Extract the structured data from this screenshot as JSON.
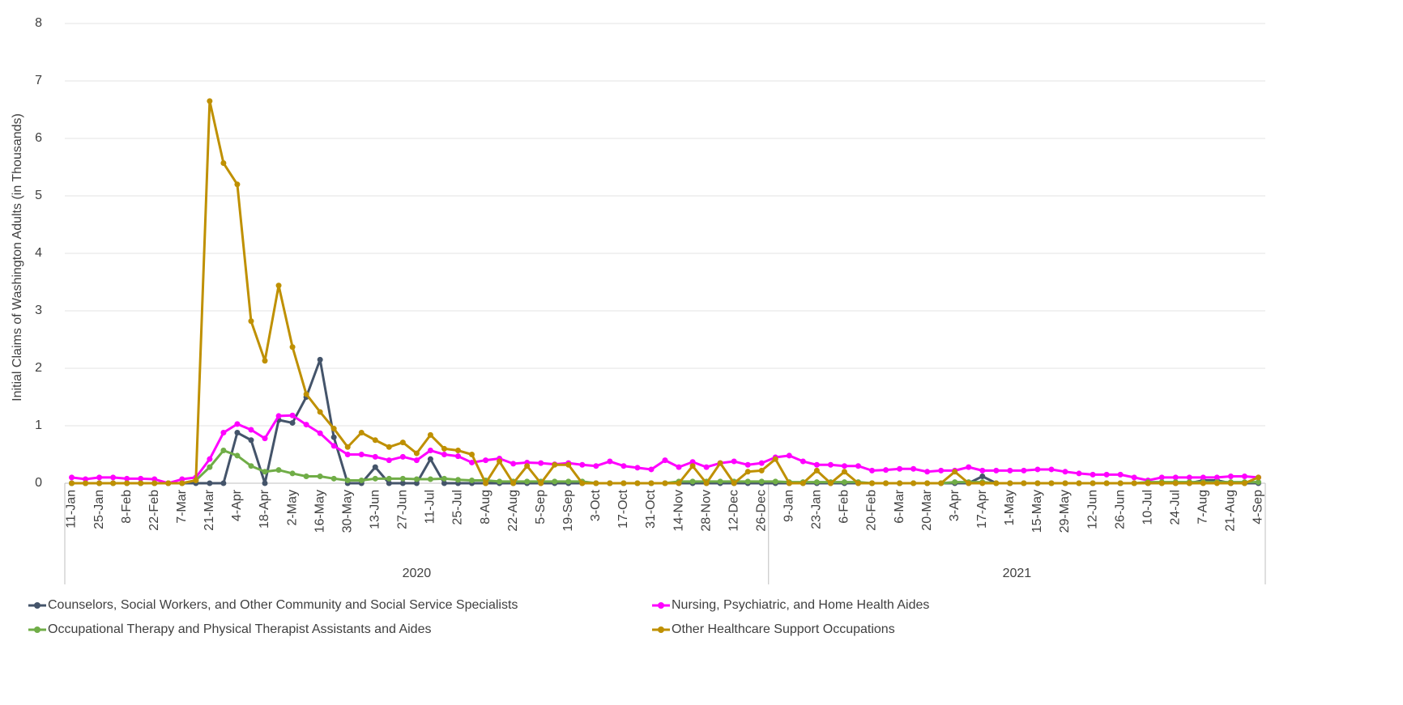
{
  "chart_data": {
    "type": "line",
    "y_label": "Initial Claims of Washington Adults (in Thousands)",
    "categories": [
      "11-Jan",
      null,
      "25-Jan",
      null,
      "8-Feb",
      null,
      "22-Feb",
      null,
      "7-Mar",
      null,
      "21-Mar",
      null,
      "4-Apr",
      null,
      "18-Apr",
      null,
      "2-May",
      null,
      "16-May",
      null,
      "30-May",
      null,
      "13-Jun",
      null,
      "27-Jun",
      null,
      "11-Jul",
      null,
      "25-Jul",
      null,
      "8-Aug",
      null,
      "22-Aug",
      null,
      "5-Sep",
      null,
      "19-Sep",
      null,
      "3-Oct",
      null,
      "17-Oct",
      null,
      "31-Oct",
      null,
      "14-Nov",
      null,
      "28-Nov",
      null,
      "12-Dec",
      null,
      "26-Dec",
      null,
      "9-Jan",
      null,
      "23-Jan",
      null,
      "6-Feb",
      null,
      "20-Feb",
      null,
      "6-Mar",
      null,
      "20-Mar",
      null,
      "3-Apr",
      null,
      "17-Apr",
      null,
      "1-May",
      null,
      "15-May",
      null,
      "29-May",
      null,
      "12-Jun",
      null,
      "26-Jun",
      null,
      "10-Jul",
      null,
      "24-Jul",
      null,
      "7-Aug",
      null,
      "21-Aug",
      null,
      "4-Sep"
    ],
    "x_groups": [
      {
        "label": "2020",
        "span": 51
      },
      {
        "label": "2021",
        "span": 36
      }
    ],
    "ylim": [
      0,
      8
    ],
    "yticks": [
      0,
      1,
      2,
      3,
      4,
      5,
      6,
      7,
      8
    ],
    "grid": true,
    "series": [
      {
        "name": "Counselors, Social Workers, and Other Community and Social Service Specialists",
        "color": "#44546a",
        "values": [
          0,
          0,
          0,
          0,
          0,
          0,
          0,
          0,
          0,
          0,
          0,
          0,
          0.88,
          0.75,
          0,
          1.1,
          1.05,
          1.5,
          2.15,
          0.8,
          0,
          0,
          0.28,
          0,
          0,
          0,
          0.42,
          0,
          0,
          0,
          0,
          0,
          0,
          0,
          0,
          0,
          0,
          0,
          0,
          0,
          0,
          0,
          0,
          0,
          0,
          0,
          0,
          0,
          0,
          0,
          0,
          0,
          0,
          0,
          0,
          0,
          0,
          0,
          0,
          0,
          0,
          0,
          0,
          0,
          0,
          0,
          0.12,
          0,
          0,
          0,
          0,
          0,
          0,
          0,
          0,
          0,
          0,
          0,
          0,
          0,
          0,
          0,
          0.05,
          0.05,
          0,
          0,
          0
        ]
      },
      {
        "name": "Nursing, Psychiatric, and Home Health Aides",
        "color": "#ff00ff",
        "values": [
          0.1,
          0.07,
          0.1,
          0.1,
          0.08,
          0.08,
          0.07,
          0,
          0.07,
          0.1,
          0.42,
          0.88,
          1.03,
          0.93,
          0.78,
          1.17,
          1.18,
          1.02,
          0.87,
          0.65,
          0.5,
          0.5,
          0.46,
          0.4,
          0.46,
          0.4,
          0.57,
          0.5,
          0.47,
          0.36,
          0.4,
          0.43,
          0.34,
          0.36,
          0.35,
          0.33,
          0.35,
          0.32,
          0.3,
          0.38,
          0.3,
          0.27,
          0.24,
          0.4,
          0.28,
          0.37,
          0.28,
          0.35,
          0.38,
          0.32,
          0.35,
          0.45,
          0.48,
          0.38,
          0.32,
          0.32,
          0.3,
          0.3,
          0.22,
          0.23,
          0.25,
          0.25,
          0.2,
          0.22,
          0.22,
          0.28,
          0.22,
          0.22,
          0.22,
          0.22,
          0.24,
          0.24,
          0.2,
          0.17,
          0.15,
          0.15,
          0.15,
          0.1,
          0.05,
          0.1,
          0.1,
          0.1,
          0.1,
          0.1,
          0.12,
          0.12,
          0.1
        ]
      },
      {
        "name": "Occupational Therapy and Physical Therapist Assistants and Aides",
        "color": "#70ad47",
        "values": [
          0,
          0,
          0,
          0,
          0,
          0,
          0,
          0,
          0,
          0.05,
          0.28,
          0.57,
          0.48,
          0.3,
          0.2,
          0.23,
          0.17,
          0.12,
          0.12,
          0.08,
          0.05,
          0.05,
          0.08,
          0.08,
          0.08,
          0.07,
          0.07,
          0.08,
          0.06,
          0.05,
          0.05,
          0.03,
          0.03,
          0.03,
          0.03,
          0.03,
          0.03,
          0.03,
          0,
          0,
          0,
          0,
          0,
          0,
          0.03,
          0.03,
          0.03,
          0.03,
          0.03,
          0.03,
          0.03,
          0.03,
          0.02,
          0.02,
          0.02,
          0.02,
          0.02,
          0.02,
          0,
          0,
          0,
          0,
          0,
          0,
          0.02,
          0.02,
          0.02,
          0,
          0,
          0,
          0,
          0,
          0,
          0,
          0,
          0,
          0,
          0,
          0.02,
          0.02,
          0.02,
          0.02,
          0.02,
          0.02,
          0.02,
          0.02,
          0.02
        ]
      },
      {
        "name": "Other Healthcare Support Occupations",
        "color": "#bf9000",
        "values": [
          0,
          0,
          0,
          0,
          0,
          0,
          0,
          0,
          0,
          0.05,
          6.65,
          5.57,
          5.2,
          2.82,
          2.13,
          3.44,
          2.37,
          1.55,
          1.24,
          0.95,
          0.63,
          0.88,
          0.75,
          0.63,
          0.71,
          0.52,
          0.84,
          0.6,
          0.57,
          0.5,
          0,
          0.38,
          0,
          0.3,
          0,
          0.32,
          0.32,
          0,
          0,
          0,
          0,
          0,
          0,
          0,
          0,
          0.3,
          0,
          0.35,
          0,
          0.2,
          0.22,
          0.42,
          0,
          0,
          0.22,
          0,
          0.2,
          0,
          0,
          0,
          0,
          0,
          0,
          0,
          0.2,
          0,
          0,
          0,
          0,
          0,
          0,
          0,
          0,
          0,
          0,
          0,
          0,
          0,
          0,
          0,
          0,
          0,
          0,
          0,
          0,
          0,
          0.1
        ]
      }
    ]
  }
}
